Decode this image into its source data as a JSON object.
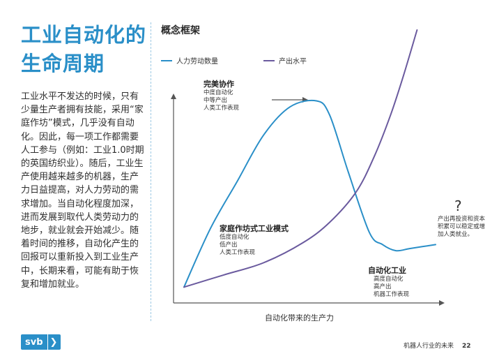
{
  "heading": {
    "line1": "工业自动化的",
    "line2": "生命周期"
  },
  "body_text": "工业水平不发达的时候，只有少量生产者拥有技能，采用“家庭作坊”模式，几乎没有自动化。因此，每一项工作都需要人工参与（例如：工业1.0时期的英国纺织业）。随后，工业生产使用越来越多的机器，生产力日益提高，对人力劳动的需求增加。当自动化程度加深，进而发展到取代人类劳动力的地步，就业就会开始减少。随着时间的推移，自动化产生的回报可以重新投入到工业生产中，长期来看，可能有助于恢复和增加就业。",
  "frame_title": "概念框架",
  "legend": [
    {
      "label": "人力劳动数量",
      "color": "#2a8fc8"
    },
    {
      "label": "产出水平",
      "color": "#6a5a9e"
    }
  ],
  "annotations": {
    "perfect": {
      "title": "完美协作",
      "lines": [
        "中度自动化",
        "中等产出",
        "人类工作表现"
      ]
    },
    "cottage": {
      "title": "家庭作坊式工业模式",
      "lines": [
        "低度自动化",
        "低产出",
        "人类工作表现"
      ]
    },
    "automated": {
      "title": "自动化工业",
      "lines": [
        "高度自动化",
        "高产出",
        "机器工作表现"
      ]
    },
    "question": {
      "mark": "?",
      "text": "产出再投资和资本积累可以稳定或增加人类就业。"
    }
  },
  "chart_data": {
    "type": "line",
    "xlabel": "自动化带来的生产力",
    "ylabel": "",
    "grid": false,
    "legend_position": "top",
    "series": [
      {
        "name": "人力劳动数量",
        "x": [
          0,
          0.1,
          0.2,
          0.3,
          0.4,
          0.5,
          0.55,
          0.62,
          0.7,
          0.75,
          0.8,
          0.85,
          0.9,
          0.95
        ],
        "y": [
          0.03,
          0.32,
          0.55,
          0.78,
          0.92,
          0.95,
          0.88,
          0.6,
          0.3,
          0.24,
          0.21,
          0.22,
          0.23,
          0.24
        ]
      },
      {
        "name": "产出水平",
        "x": [
          0,
          0.15,
          0.3,
          0.45,
          0.55,
          0.65,
          0.72,
          0.78,
          0.83,
          0.88
        ],
        "y": [
          0.03,
          0.09,
          0.15,
          0.25,
          0.35,
          0.5,
          0.68,
          0.88,
          1.08,
          1.3
        ]
      }
    ]
  },
  "footer": {
    "text": "机器人行业的未来",
    "page": "22"
  },
  "logo": {
    "text": "svb",
    "chevron": "❯"
  }
}
